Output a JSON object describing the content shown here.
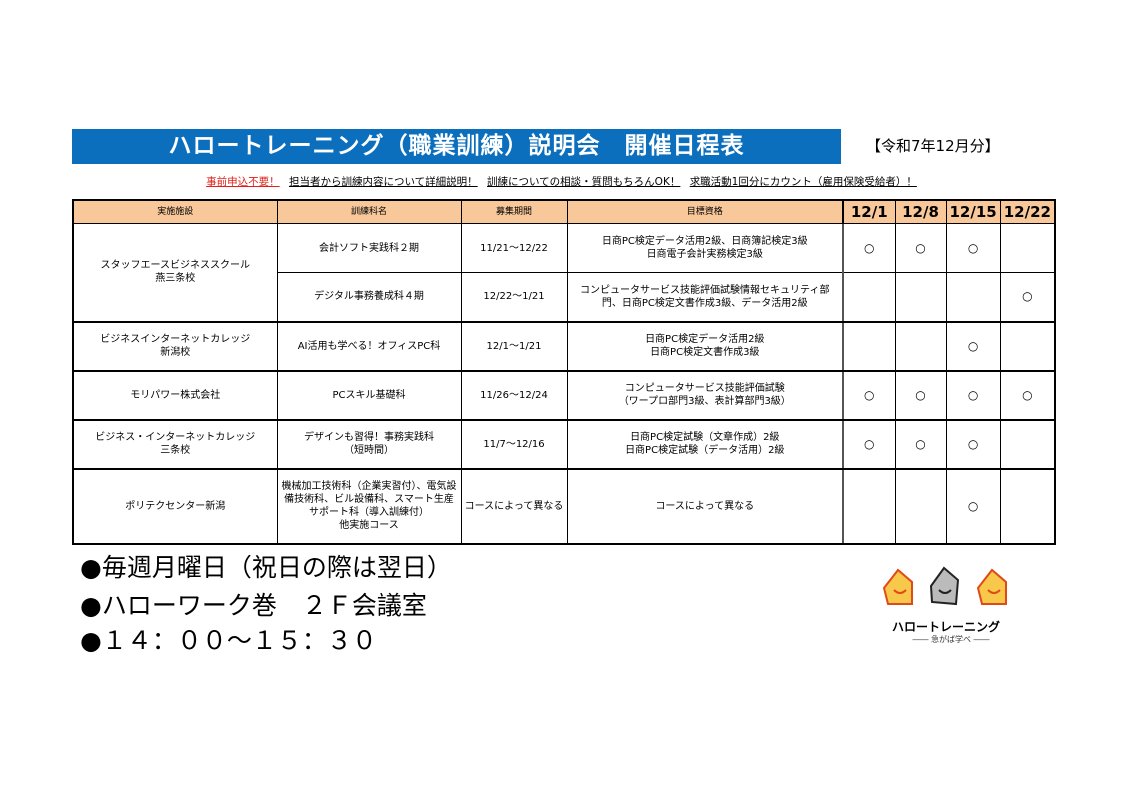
{
  "title": "ハロートレーニング（職業訓練）説明会　開催日程表",
  "period": "【令和7年12月分】",
  "notice": [
    "事前申込不要！",
    "担当者から訓練内容について詳細説明！",
    "訓練についての相談・質問もちろんOK！",
    "求職活動1回分にカウント（雇用保険受給者）！"
  ],
  "headers": [
    "実施施設",
    "訓練科名",
    "募集期間",
    "目標資格",
    "12/1",
    "12/8",
    "12/15",
    "12/22"
  ],
  "rows": [
    {
      "facility": "スタッフエースビジネススクール\n燕三条校",
      "course": "会計ソフト実践科２期",
      "period": "11/21～12/22",
      "qual": "日商PC検定データ活用2級、日商簿記検定3級\n日商電子会計実務検定3級",
      "marks": [
        "○",
        "○",
        "○",
        ""
      ]
    },
    {
      "facility": "",
      "course": "デジタル事務養成科４期",
      "period": "12/22～1/21",
      "qual": "コンピュータサービス技能評価試験情報セキュリティ部門、日商PC検定文書作成3級、データ活用2級",
      "marks": [
        "",
        "",
        "",
        "○"
      ]
    },
    {
      "facility": "ビジネスインターネットカレッジ\n新潟校",
      "course": "AI活用も学べる！オフィスPC科",
      "period": "12/1～1/21",
      "qual": "日商PC検定データ活用2級\n日商PC検定文書作成3級",
      "marks": [
        "",
        "",
        "○",
        ""
      ]
    },
    {
      "facility": "モリパワー株式会社",
      "course": "PCスキル基礎科",
      "period": "11/26～12/24",
      "qual": "コンピュータサービス技能評価試験\n（ワープロ部門3級、表計算部門3級）",
      "marks": [
        "○",
        "○",
        "○",
        "○"
      ]
    },
    {
      "facility": "ビジネス・インターネットカレッジ\n三条校",
      "course": "デザインも習得！事務実践科\n（短時間）",
      "period": "11/7～12/16",
      "qual": "日商PC検定試験（文章作成）2級\n日商PC検定試験（データ活用）2級",
      "marks": [
        "○",
        "○",
        "○",
        ""
      ]
    },
    {
      "facility": "ポリテクセンター新潟",
      "course": "機械加工技術科（企業実習付）、電気設備技術科、ビル設備科、スマート生産サポート科（導入訓練付）\n他実施コース",
      "period": "コースによって異なる",
      "qual": "コースによって異なる",
      "marks": [
        "",
        "",
        "○",
        ""
      ]
    }
  ],
  "info": [
    "●毎週月曜日（祝日の際は翌日）",
    "●ハローワーク巻　２Ｆ会議室",
    "●１４：００～１５：３０"
  ],
  "logo": {
    "name": "ハロートレーニング",
    "tagline": "急がば学べ"
  },
  "colors": {
    "title_bg": "#0b6fbd",
    "header_bg": "#f8c89a",
    "notice_red": "#e0201a"
  }
}
